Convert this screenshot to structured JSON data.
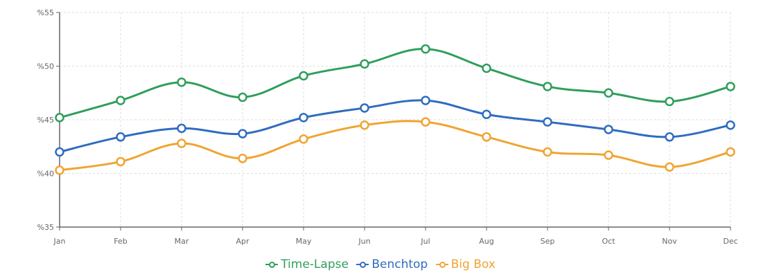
{
  "chart_data": {
    "type": "line",
    "categories": [
      "Jan",
      "Feb",
      "Mar",
      "Apr",
      "May",
      "Jun",
      "Jul",
      "Aug",
      "Sep",
      "Oct",
      "Nov",
      "Dec"
    ],
    "series": [
      {
        "name": "Time-Lapse",
        "color": "#2e9e5b",
        "values": [
          45.2,
          46.8,
          48.5,
          47.1,
          49.1,
          50.2,
          51.6,
          49.8,
          48.1,
          47.5,
          46.7,
          48.1
        ]
      },
      {
        "name": "Benchtop",
        "color": "#2f6cc0",
        "values": [
          42.0,
          43.4,
          44.2,
          43.7,
          45.2,
          46.1,
          46.8,
          45.5,
          44.8,
          44.1,
          43.4,
          44.5
        ]
      },
      {
        "name": "Big Box",
        "color": "#f0a432",
        "values": [
          40.3,
          41.1,
          42.8,
          41.4,
          43.2,
          44.5,
          44.8,
          43.4,
          42.0,
          41.7,
          40.6,
          42.0
        ]
      }
    ],
    "x_tick_labels": [
      "Jan",
      "Feb",
      "Mar",
      "Apr",
      "May",
      "Jun",
      "Jul",
      "Aug",
      "Sep",
      "Oct",
      "Nov",
      "Dec"
    ],
    "y_ticks": [
      35,
      40,
      45,
      50,
      55
    ],
    "y_tick_labels": [
      "%35",
      "%40",
      "%45",
      "%50",
      "%55"
    ],
    "ylim": [
      35,
      55
    ],
    "grid": true,
    "legend_position": "bottom-center",
    "xlabel": "",
    "ylabel": "",
    "title": ""
  },
  "legend": {
    "items": [
      {
        "label": "Time-Lapse",
        "color": "#2e9e5b"
      },
      {
        "label": "Benchtop",
        "color": "#2f6cc0"
      },
      {
        "label": "Big Box",
        "color": "#f0a432"
      }
    ]
  }
}
